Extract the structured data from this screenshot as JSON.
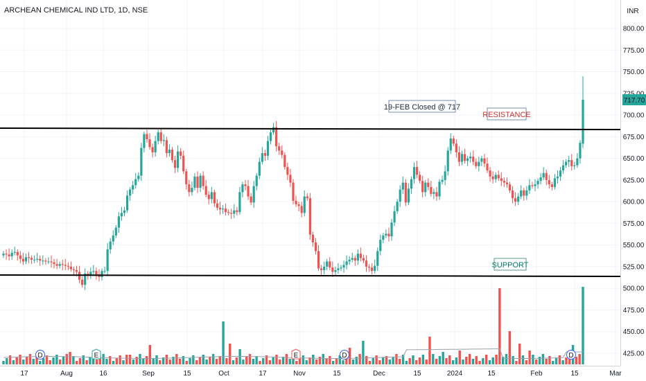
{
  "chart_data": {
    "type": "candlestick",
    "title": "ARCHEAN CHEMICAL IND LTD, 1D, NSE",
    "currency": "INR",
    "last_price": "717.70",
    "y_axis": {
      "range": [
        400,
        812.5
      ],
      "ticks": [
        "425.00",
        "450.00",
        "475.00",
        "500.00",
        "525.00",
        "550.00",
        "575.00",
        "600.00",
        "625.00",
        "650.00",
        "675.00",
        "700.00",
        "725.00",
        "750.00",
        "775.00",
        "800.00"
      ]
    },
    "x_axis": {
      "ticks": [
        {
          "label": "17",
          "x": 35
        },
        {
          "label": "Aug",
          "x": 96
        },
        {
          "label": "16",
          "x": 149
        },
        {
          "label": "Sep",
          "x": 214
        },
        {
          "label": "15",
          "x": 270
        },
        {
          "label": "Oct",
          "x": 323
        },
        {
          "label": "17",
          "x": 379
        },
        {
          "label": "Nov",
          "x": 432
        },
        {
          "label": "15",
          "x": 486
        },
        {
          "label": "Dec",
          "x": 547
        },
        {
          "label": "15",
          "x": 602
        },
        {
          "label": "2024",
          "x": 656
        },
        {
          "label": "15",
          "x": 709
        },
        {
          "label": "Feb",
          "x": 774
        },
        {
          "label": "15",
          "x": 829
        },
        {
          "label": "Mar",
          "x": 888
        }
      ]
    },
    "closes": [
      540,
      539,
      537,
      541,
      542,
      538,
      534,
      531,
      536,
      535,
      533,
      533,
      534,
      532,
      532,
      531,
      531,
      530,
      528,
      526,
      528,
      527,
      526,
      525,
      522,
      521,
      519,
      510,
      504,
      517,
      515,
      519,
      520,
      516,
      513,
      520,
      520,
      545,
      554,
      561,
      570,
      583,
      587,
      590,
      607,
      614,
      619,
      626,
      630,
      662,
      678,
      672,
      663,
      657,
      670,
      680,
      670,
      671,
      656,
      660,
      648,
      639,
      658,
      653,
      635,
      620,
      611,
      616,
      629,
      616,
      630,
      618,
      608,
      603,
      611,
      598,
      593,
      591,
      592,
      588,
      587,
      586,
      590,
      588,
      611,
      620,
      618,
      606,
      599,
      618,
      630,
      646,
      656,
      653,
      670,
      680,
      686,
      664,
      659,
      654,
      640,
      631,
      622,
      601,
      597,
      595,
      587,
      606,
      604,
      562,
      553,
      543,
      523,
      521,
      525,
      531,
      524,
      519,
      521,
      523,
      524,
      527,
      531,
      533,
      535,
      532,
      540,
      535,
      532,
      525,
      524,
      520,
      526,
      543,
      556,
      561,
      563,
      560,
      576,
      589,
      600,
      614,
      622,
      599,
      615,
      626,
      640,
      631,
      624,
      611,
      622,
      617,
      609,
      611,
      606,
      623,
      625,
      635,
      659,
      673,
      667,
      657,
      646,
      655,
      647,
      650,
      652,
      646,
      641,
      646,
      650,
      644,
      636,
      629,
      626,
      631,
      627,
      624,
      622,
      620,
      613,
      604,
      600,
      606,
      613,
      607,
      613,
      619,
      618,
      620,
      624,
      628,
      633,
      625,
      620,
      617,
      627,
      629,
      636,
      642,
      646,
      648,
      641,
      642,
      650,
      668,
      717.7
    ],
    "volume_bars": 175,
    "annotations": {
      "closed_label": "19-FEB Closed @ 717",
      "resistance_label": "RESISTANCE",
      "support_label": "SUPPORT",
      "resistance_level": 684,
      "support_level": 514
    },
    "event_markers": [
      {
        "label": "D",
        "x": 58
      },
      {
        "label": "E",
        "x": 139
      },
      {
        "label": "E",
        "x": 427
      },
      {
        "label": "D",
        "x": 497
      },
      {
        "label": "D",
        "x": 824
      }
    ],
    "colors": {
      "up": "#26a69a",
      "down": "#ef5350",
      "line": "#000000",
      "resistance_text": "#d32f2f",
      "support_text": "#00796b",
      "price_label": "#26a69a"
    }
  }
}
